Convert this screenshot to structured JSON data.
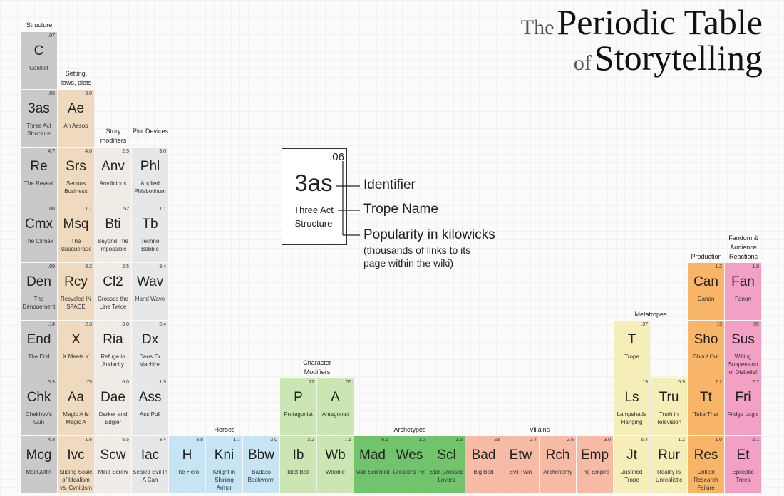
{
  "title": {
    "line1_small": "The",
    "line1_large": "Periodic Table",
    "line2_small": "of",
    "line2_large": "Storytelling"
  },
  "legend": {
    "value": ".06",
    "symbol": "3as",
    "name": "Three Act Structure",
    "identifier": "Identifier",
    "trope_name": "Trope Name",
    "popularity": "Popularity in kilowicks",
    "popularity_note": "(thousands of links to its page within the wiki)"
  },
  "groups": [
    {
      "label": "Structure",
      "color": "#c9c9cb",
      "cells": [
        {
          "symbol": "C",
          "value": ".07",
          "name": "Conflict"
        },
        {
          "symbol": "3as",
          "value": ".06",
          "name": "Three Act Structure"
        },
        {
          "symbol": "Re",
          "value": "4.7",
          "name": "The Reveal"
        },
        {
          "symbol": "Cmx",
          "value": ".08",
          "name": "The Climax"
        },
        {
          "symbol": "Den",
          "value": ".09",
          "name": "The Dénouement"
        },
        {
          "symbol": "End",
          "value": ".14",
          "name": "The End"
        },
        {
          "symbol": "Chk",
          "value": "5.3",
          "name": "Chekhov's Gun"
        },
        {
          "symbol": "Mcg",
          "value": "4.3",
          "name": "MacGuffin"
        }
      ]
    },
    {
      "label": "Setting, laws, plots",
      "color": "#efdac0",
      "cells": [
        {
          "symbol": "Ae",
          "value": "3.0",
          "name": "An Aesop"
        },
        {
          "symbol": "Srs",
          "value": "4.0",
          "name": "Serious Business"
        },
        {
          "symbol": "Msq",
          "value": "1.7",
          "name": "The Masquerade"
        },
        {
          "symbol": "Rcy",
          "value": "3.2",
          "name": "Recycled IN SPACE"
        },
        {
          "symbol": "X",
          "value": "2.3",
          "name": "X Meets Y"
        },
        {
          "symbol": "Aa",
          "value": ".75",
          "name": "Magic A Is Magic A"
        },
        {
          "symbol": "Ivc",
          "value": "1.6",
          "name": "Sliding Scale of Idealism vs. Cynicism"
        }
      ]
    },
    {
      "label": "Story modifiers",
      "color": "#f0ebe4",
      "cells": [
        {
          "symbol": "Anv",
          "value": "2.5",
          "name": "Anvilicious"
        },
        {
          "symbol": "Bti",
          "value": ".52",
          "name": "Beyond The Impossible"
        },
        {
          "symbol": "Cl2",
          "value": "2.5",
          "name": "Crosses the Line Twice"
        },
        {
          "symbol": "Ria",
          "value": "3.0",
          "name": "Refuge in Audacity"
        },
        {
          "symbol": "Dae",
          "value": "6.0",
          "name": "Darker and Edgier"
        },
        {
          "symbol": "Scw",
          "value": "5.5",
          "name": "Mind Screw"
        }
      ]
    },
    {
      "label": "Plot Devices",
      "color": "#e7e7e9",
      "cells": [
        {
          "symbol": "Phl",
          "value": "3.0",
          "name": "Applied Phlebotinum"
        },
        {
          "symbol": "Tb",
          "value": "1.1",
          "name": "Techno Babble"
        },
        {
          "symbol": "Wav",
          "value": "3.4",
          "name": "Hand Wave"
        },
        {
          "symbol": "Dx",
          "value": "2.4",
          "name": "Deus Ex Machina"
        },
        {
          "symbol": "Ass",
          "value": "1.5",
          "name": "Ass Pull"
        },
        {
          "symbol": "Iac",
          "value": "3.4",
          "name": "Sealed Evil In A Can"
        }
      ]
    },
    {
      "label": "Heroes",
      "color": "#c6e4f3",
      "cells": [
        {
          "symbol": "H",
          "value": "8.8",
          "name": "The Hero"
        },
        {
          "symbol": "Kni",
          "value": "1.7",
          "name": "Knight in Shining Armor"
        },
        {
          "symbol": "Bbw",
          "value": "3.0",
          "name": "Badass Bookworm"
        }
      ]
    },
    {
      "label": "Character Modifiers",
      "color": "#cbe6b2",
      "cells": [
        {
          "symbol": "P",
          "value": ".72",
          "name": "Protagonist"
        },
        {
          "symbol": "A",
          "value": ".06",
          "name": "Antagonist"
        },
        {
          "symbol": "Ib",
          "value": "3.2",
          "name": "Idiot Ball"
        },
        {
          "symbol": "Wb",
          "value": "7.5",
          "name": "Woobie"
        }
      ]
    },
    {
      "label": "Archetypes",
      "color": "#72c46c",
      "cells": [
        {
          "symbol": "Mad",
          "value": "6.6",
          "name": "Mad Scientist"
        },
        {
          "symbol": "Wes",
          "value": "1.2",
          "name": "Creator's Pet"
        },
        {
          "symbol": "Scl",
          "value": "1.5",
          "name": "Star-Crossed Lovers"
        }
      ]
    },
    {
      "label": "Villains",
      "color": "#f7baa5",
      "cells": [
        {
          "symbol": "Bad",
          "value": "23",
          "name": "Big Bad"
        },
        {
          "symbol": "Etw",
          "value": "2.4",
          "name": "Evil Twin"
        },
        {
          "symbol": "Rch",
          "value": "2.6",
          "name": "Archenemy"
        },
        {
          "symbol": "Emp",
          "value": "3.0",
          "name": "The Empire"
        }
      ]
    },
    {
      "label": "Metatropes",
      "color": "#f6eeb9",
      "cells": [
        {
          "symbol": "T",
          "value": ".37",
          "name": "Trope"
        },
        {
          "symbol": "Ls",
          "value": "19",
          "name": "Lampshade Hanging"
        },
        {
          "symbol": "Jt",
          "value": "6.4",
          "name": "Justified Trope"
        },
        {
          "symbol": "Tru",
          "value": "5.9",
          "name": "Truth in Television"
        },
        {
          "symbol": "Rur",
          "value": "1.2",
          "name": "Reality Is Unrealistic"
        }
      ]
    },
    {
      "label": "Production",
      "color": "#f8b567",
      "cells": [
        {
          "symbol": "Can",
          "value": "1.2",
          "name": "Canon"
        },
        {
          "symbol": "Sho",
          "value": "19",
          "name": "Shout Out"
        },
        {
          "symbol": "Tt",
          "value": "7.2",
          "name": "Take That"
        },
        {
          "symbol": "Res",
          "value": "1.0",
          "name": "Critical Research Failure"
        }
      ]
    },
    {
      "label": "Fandom & Audience Reactions",
      "color": "#f2a1c4",
      "cells": [
        {
          "symbol": "Fan",
          "value": "1.8",
          "name": "Fanon"
        },
        {
          "symbol": "Sus",
          "value": ".95",
          "name": "Willing Suspension of Disbelief"
        },
        {
          "symbol": "Fri",
          "value": "7.7",
          "name": "Fridge Logic"
        },
        {
          "symbol": "Et",
          "value": "2.1",
          "name": "Epileptic Trees"
        }
      ]
    }
  ]
}
